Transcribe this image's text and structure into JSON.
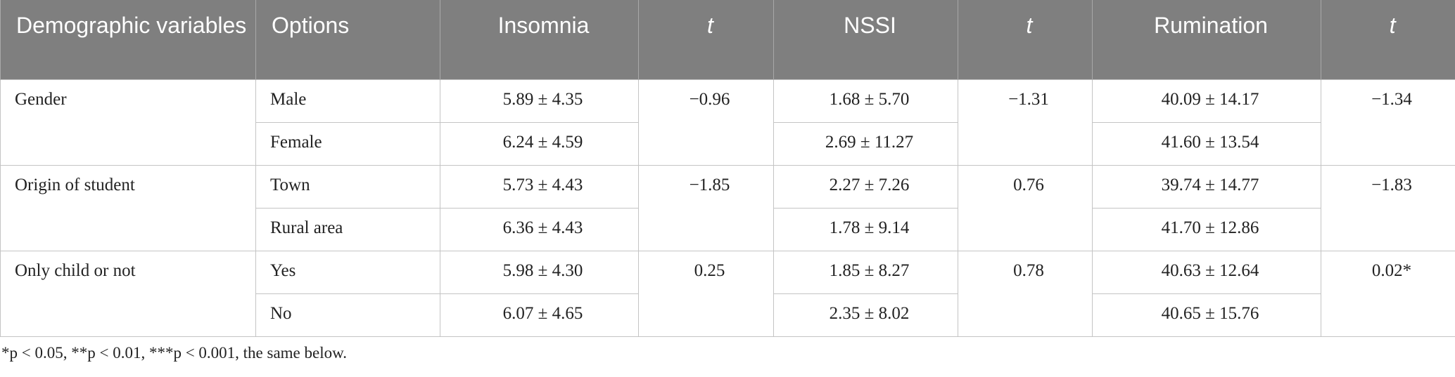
{
  "table": {
    "header": [
      "Demographic variables",
      "Options",
      "Insomnia",
      "t",
      "NSSI",
      "t",
      "Rumination",
      "t"
    ],
    "groups": [
      {
        "variable": "Gender",
        "t": [
          "−0.96",
          "−1.31",
          "−1.34"
        ],
        "rows": [
          {
            "option": "Male",
            "values": [
              "5.89 ± 4.35",
              "1.68 ± 5.70",
              "40.09 ± 14.17"
            ]
          },
          {
            "option": "Female",
            "values": [
              "6.24 ± 4.59",
              "2.69 ± 11.27",
              "41.60 ± 13.54"
            ]
          }
        ]
      },
      {
        "variable": "Origin of student",
        "t": [
          "−1.85",
          "0.76",
          "−1.83"
        ],
        "rows": [
          {
            "option": "Town",
            "values": [
              "5.73 ± 4.43",
              "2.27 ± 7.26",
              "39.74 ± 14.77"
            ]
          },
          {
            "option": "Rural area",
            "values": [
              "6.36 ± 4.43",
              "1.78 ± 9.14",
              "41.70 ± 12.86"
            ]
          }
        ]
      },
      {
        "variable": "Only child or not",
        "t": [
          "0.25",
          "0.78",
          "0.02*"
        ],
        "rows": [
          {
            "option": "Yes",
            "values": [
              "5.98 ± 4.30",
              "1.85 ± 8.27",
              "40.63 ± 12.64"
            ]
          },
          {
            "option": "No",
            "values": [
              "6.07 ± 4.65",
              "2.35 ± 8.02",
              "40.65 ± 15.76"
            ]
          }
        ]
      }
    ],
    "footnote": "*p < 0.05, **p < 0.01, ***p < 0.001, the same below."
  }
}
